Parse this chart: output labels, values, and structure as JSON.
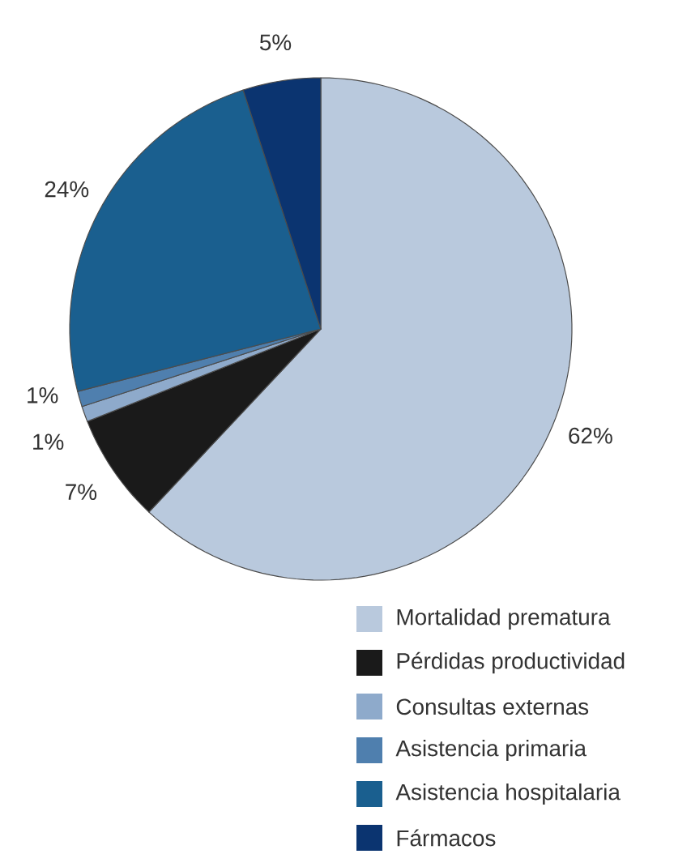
{
  "chart_data": {
    "type": "pie",
    "categories": [
      "Mortalidad prematura",
      "Pérdidas productividad",
      "Consultas externas",
      "Asistencia primaria",
      "Asistencia hospitalaria",
      "Fármacos"
    ],
    "values": [
      62,
      7,
      1,
      1,
      24,
      5
    ],
    "value_labels": [
      "62%",
      "7%",
      "1%",
      "1%",
      "24%",
      "5%"
    ],
    "colors": [
      "#b9c9dd",
      "#1a1a1a",
      "#8eaacb",
      "#4f7fae",
      "#1a5f8f",
      "#0b3470"
    ],
    "legend": "bottom right"
  }
}
